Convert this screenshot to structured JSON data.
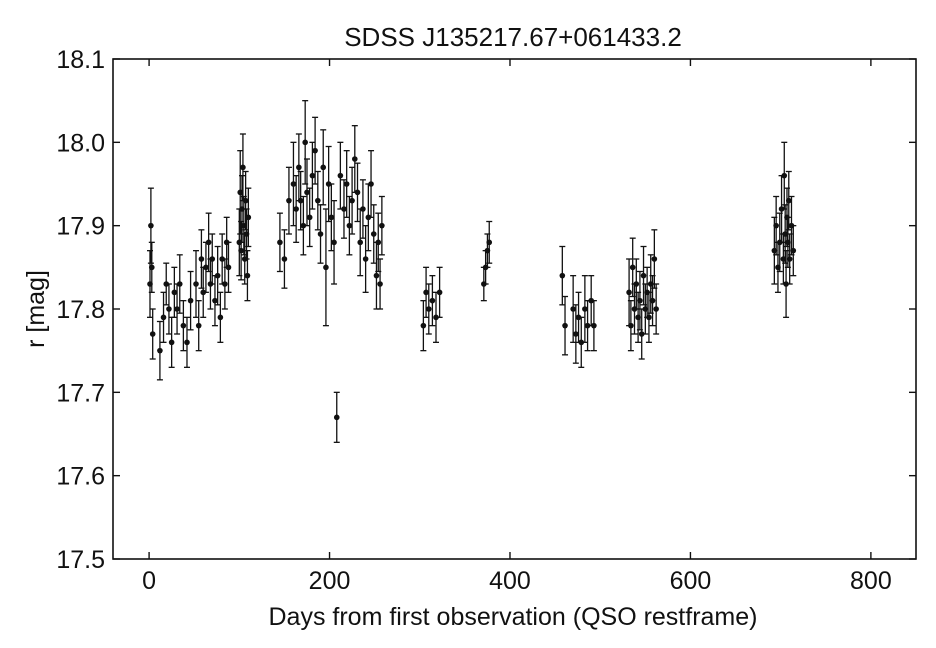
{
  "chart_data": {
    "type": "scatter",
    "title": "SDSS J135217.67+061433.2",
    "xlabel": "Days from first observation (QSO restframe)",
    "ylabel": "r [mag]",
    "xlim": [
      -40,
      850
    ],
    "ylim": [
      17.5,
      18.1
    ],
    "xticks": [
      0,
      200,
      400,
      600,
      800
    ],
    "xtick_labels": [
      "0",
      "200",
      "400",
      "600",
      "800"
    ],
    "yticks": [
      17.5,
      17.6,
      17.7,
      17.8,
      17.9,
      18.0,
      18.1
    ],
    "ytick_labels": [
      "17.5",
      "17.6",
      "17.7",
      "17.8",
      "17.9",
      "18.0",
      "18.1"
    ],
    "grid": false,
    "legend": "none",
    "marker_color": "#111111",
    "error_bars": true,
    "series": [
      {
        "points": [
          {
            "x": 1,
            "y": 17.83,
            "err": 0.04
          },
          {
            "x": 2,
            "y": 17.9,
            "err": 0.045
          },
          {
            "x": 3,
            "y": 17.85,
            "err": 0.03
          },
          {
            "x": 4,
            "y": 17.77,
            "err": 0.03
          },
          {
            "x": 12,
            "y": 17.75,
            "err": 0.035
          },
          {
            "x": 16,
            "y": 17.79,
            "err": 0.03
          },
          {
            "x": 19,
            "y": 17.83,
            "err": 0.025
          },
          {
            "x": 22,
            "y": 17.8,
            "err": 0.03
          },
          {
            "x": 25,
            "y": 17.76,
            "err": 0.03
          },
          {
            "x": 28,
            "y": 17.82,
            "err": 0.03
          },
          {
            "x": 31,
            "y": 17.8,
            "err": 0.03
          },
          {
            "x": 34,
            "y": 17.83,
            "err": 0.035
          },
          {
            "x": 38,
            "y": 17.78,
            "err": 0.03
          },
          {
            "x": 42,
            "y": 17.76,
            "err": 0.03
          },
          {
            "x": 46,
            "y": 17.81,
            "err": 0.035
          },
          {
            "x": 52,
            "y": 17.83,
            "err": 0.04
          },
          {
            "x": 55,
            "y": 17.78,
            "err": 0.03
          },
          {
            "x": 58,
            "y": 17.86,
            "err": 0.035
          },
          {
            "x": 60,
            "y": 17.82,
            "err": 0.03
          },
          {
            "x": 63,
            "y": 17.85,
            "err": 0.03
          },
          {
            "x": 66,
            "y": 17.88,
            "err": 0.035
          },
          {
            "x": 68,
            "y": 17.83,
            "err": 0.03
          },
          {
            "x": 70,
            "y": 17.86,
            "err": 0.03
          },
          {
            "x": 73,
            "y": 17.81,
            "err": 0.03
          },
          {
            "x": 76,
            "y": 17.84,
            "err": 0.035
          },
          {
            "x": 79,
            "y": 17.79,
            "err": 0.03
          },
          {
            "x": 81,
            "y": 17.86,
            "err": 0.03
          },
          {
            "x": 84,
            "y": 17.83,
            "err": 0.03
          },
          {
            "x": 86,
            "y": 17.88,
            "err": 0.03
          },
          {
            "x": 88,
            "y": 17.85,
            "err": 0.03
          },
          {
            "x": 100,
            "y": 17.88,
            "err": 0.04
          },
          {
            "x": 101,
            "y": 17.94,
            "err": 0.05
          },
          {
            "x": 102,
            "y": 17.87,
            "err": 0.035
          },
          {
            "x": 103,
            "y": 17.92,
            "err": 0.04
          },
          {
            "x": 104,
            "y": 17.97,
            "err": 0.04
          },
          {
            "x": 105,
            "y": 17.9,
            "err": 0.035
          },
          {
            "x": 106,
            "y": 17.86,
            "err": 0.03
          },
          {
            "x": 107,
            "y": 17.93,
            "err": 0.035
          },
          {
            "x": 108,
            "y": 17.89,
            "err": 0.03
          },
          {
            "x": 109,
            "y": 17.84,
            "err": 0.03
          },
          {
            "x": 110,
            "y": 17.91,
            "err": 0.035
          },
          {
            "x": 145,
            "y": 17.88,
            "err": 0.035
          },
          {
            "x": 150,
            "y": 17.86,
            "err": 0.035
          },
          {
            "x": 155,
            "y": 17.93,
            "err": 0.04
          },
          {
            "x": 160,
            "y": 17.95,
            "err": 0.05
          },
          {
            "x": 163,
            "y": 17.92,
            "err": 0.04
          },
          {
            "x": 166,
            "y": 17.97,
            "err": 0.04
          },
          {
            "x": 168,
            "y": 17.93,
            "err": 0.035
          },
          {
            "x": 171,
            "y": 17.9,
            "err": 0.035
          },
          {
            "x": 173,
            "y": 18.0,
            "err": 0.05
          },
          {
            "x": 175,
            "y": 17.94,
            "err": 0.04
          },
          {
            "x": 178,
            "y": 17.91,
            "err": 0.035
          },
          {
            "x": 181,
            "y": 17.96,
            "err": 0.04
          },
          {
            "x": 184,
            "y": 17.99,
            "err": 0.04
          },
          {
            "x": 187,
            "y": 17.93,
            "err": 0.035
          },
          {
            "x": 190,
            "y": 17.89,
            "err": 0.035
          },
          {
            "x": 193,
            "y": 17.97,
            "err": 0.045
          },
          {
            "x": 196,
            "y": 17.85,
            "err": 0.07
          },
          {
            "x": 199,
            "y": 17.95,
            "err": 0.045
          },
          {
            "x": 202,
            "y": 17.91,
            "err": 0.04
          },
          {
            "x": 205,
            "y": 17.88,
            "err": 0.05
          },
          {
            "x": 208,
            "y": 17.67,
            "err": 0.03
          },
          {
            "x": 212,
            "y": 17.96,
            "err": 0.04
          },
          {
            "x": 216,
            "y": 17.92,
            "err": 0.035
          },
          {
            "x": 219,
            "y": 17.95,
            "err": 0.04
          },
          {
            "x": 222,
            "y": 17.9,
            "err": 0.035
          },
          {
            "x": 225,
            "y": 17.93,
            "err": 0.04
          },
          {
            "x": 228,
            "y": 17.98,
            "err": 0.04
          },
          {
            "x": 231,
            "y": 17.94,
            "err": 0.035
          },
          {
            "x": 234,
            "y": 17.88,
            "err": 0.04
          },
          {
            "x": 237,
            "y": 17.92,
            "err": 0.035
          },
          {
            "x": 240,
            "y": 17.86,
            "err": 0.04
          },
          {
            "x": 243,
            "y": 17.91,
            "err": 0.04
          },
          {
            "x": 246,
            "y": 17.95,
            "err": 0.04
          },
          {
            "x": 249,
            "y": 17.89,
            "err": 0.035
          },
          {
            "x": 252,
            "y": 17.84,
            "err": 0.04
          },
          {
            "x": 254,
            "y": 17.88,
            "err": 0.035
          },
          {
            "x": 256,
            "y": 17.83,
            "err": 0.03
          },
          {
            "x": 258,
            "y": 17.9,
            "err": 0.035
          },
          {
            "x": 304,
            "y": 17.78,
            "err": 0.03
          },
          {
            "x": 307,
            "y": 17.82,
            "err": 0.03
          },
          {
            "x": 310,
            "y": 17.8,
            "err": 0.03
          },
          {
            "x": 314,
            "y": 17.81,
            "err": 0.03
          },
          {
            "x": 318,
            "y": 17.79,
            "err": 0.03
          },
          {
            "x": 322,
            "y": 17.82,
            "err": 0.03
          },
          {
            "x": 371,
            "y": 17.83,
            "err": 0.02
          },
          {
            "x": 373,
            "y": 17.85,
            "err": 0.02
          },
          {
            "x": 375,
            "y": 17.87,
            "err": 0.02
          },
          {
            "x": 377,
            "y": 17.88,
            "err": 0.025
          },
          {
            "x": 458,
            "y": 17.84,
            "err": 0.035
          },
          {
            "x": 461,
            "y": 17.78,
            "err": 0.035
          },
          {
            "x": 470,
            "y": 17.8,
            "err": 0.04
          },
          {
            "x": 473,
            "y": 17.77,
            "err": 0.035
          },
          {
            "x": 476,
            "y": 17.79,
            "err": 0.03
          },
          {
            "x": 479,
            "y": 17.76,
            "err": 0.03
          },
          {
            "x": 483,
            "y": 17.8,
            "err": 0.04
          },
          {
            "x": 486,
            "y": 17.78,
            "err": 0.03
          },
          {
            "x": 490,
            "y": 17.81,
            "err": 0.03
          },
          {
            "x": 493,
            "y": 17.78,
            "err": 0.03
          },
          {
            "x": 532,
            "y": 17.82,
            "err": 0.04
          },
          {
            "x": 534,
            "y": 17.78,
            "err": 0.03
          },
          {
            "x": 536,
            "y": 17.85,
            "err": 0.035
          },
          {
            "x": 538,
            "y": 17.8,
            "err": 0.03
          },
          {
            "x": 540,
            "y": 17.83,
            "err": 0.03
          },
          {
            "x": 542,
            "y": 17.79,
            "err": 0.03
          },
          {
            "x": 544,
            "y": 17.81,
            "err": 0.035
          },
          {
            "x": 546,
            "y": 17.77,
            "err": 0.03
          },
          {
            "x": 548,
            "y": 17.84,
            "err": 0.035
          },
          {
            "x": 550,
            "y": 17.8,
            "err": 0.03
          },
          {
            "x": 552,
            "y": 17.82,
            "err": 0.03
          },
          {
            "x": 554,
            "y": 17.79,
            "err": 0.03
          },
          {
            "x": 556,
            "y": 17.83,
            "err": 0.035
          },
          {
            "x": 558,
            "y": 17.81,
            "err": 0.03
          },
          {
            "x": 560,
            "y": 17.86,
            "err": 0.035
          },
          {
            "x": 562,
            "y": 17.8,
            "err": 0.03
          },
          {
            "x": 693,
            "y": 17.87,
            "err": 0.04
          },
          {
            "x": 695,
            "y": 17.9,
            "err": 0.035
          },
          {
            "x": 697,
            "y": 17.85,
            "err": 0.03
          },
          {
            "x": 699,
            "y": 17.88,
            "err": 0.035
          },
          {
            "x": 701,
            "y": 17.92,
            "err": 0.04
          },
          {
            "x": 703,
            "y": 17.86,
            "err": 0.03
          },
          {
            "x": 704,
            "y": 17.96,
            "err": 0.04
          },
          {
            "x": 705,
            "y": 17.89,
            "err": 0.035
          },
          {
            "x": 706,
            "y": 17.83,
            "err": 0.04
          },
          {
            "x": 707,
            "y": 17.91,
            "err": 0.035
          },
          {
            "x": 708,
            "y": 17.88,
            "err": 0.03
          },
          {
            "x": 709,
            "y": 17.93,
            "err": 0.035
          },
          {
            "x": 710,
            "y": 17.86,
            "err": 0.03
          },
          {
            "x": 712,
            "y": 17.9,
            "err": 0.035
          },
          {
            "x": 714,
            "y": 17.87,
            "err": 0.03
          }
        ]
      }
    ]
  }
}
